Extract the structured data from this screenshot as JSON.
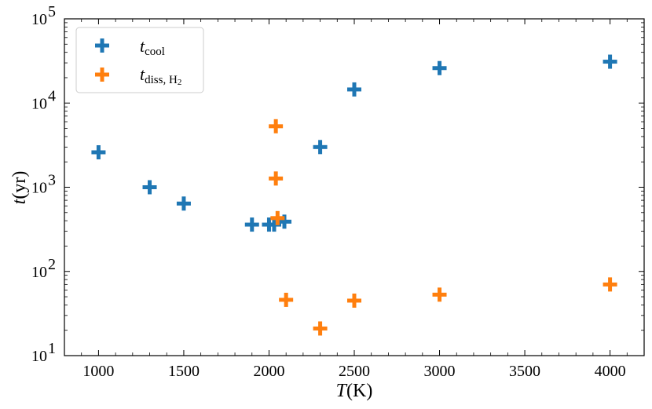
{
  "chart_data": {
    "type": "scatter",
    "xlabel": {
      "var": "T",
      "unit": "(K)"
    },
    "ylabel": {
      "var": "t",
      "unit": "(yr)"
    },
    "xlim": [
      800,
      4200
    ],
    "ylim": [
      10,
      100000
    ],
    "y_scale": "log",
    "x_ticks": [
      1000,
      1500,
      2000,
      2500,
      3000,
      3500,
      4000
    ],
    "y_ticks": [
      {
        "exp": "1",
        "value": 10
      },
      {
        "exp": "2",
        "value": 100
      },
      {
        "exp": "3",
        "value": 1000
      },
      {
        "exp": "4",
        "value": 10000
      },
      {
        "exp": "5",
        "value": 100000
      }
    ],
    "grid": false,
    "legend_position": "top-left",
    "series": [
      {
        "name": "t_cool",
        "legend": {
          "main": "t",
          "sub": "cool",
          "sub2": ""
        },
        "color": "#1f77b4",
        "marker": "plus",
        "points": [
          [
            1000,
            2600
          ],
          [
            1300,
            1000
          ],
          [
            1500,
            640
          ],
          [
            1900,
            360
          ],
          [
            2000,
            360
          ],
          [
            2030,
            360
          ],
          [
            2090,
            390
          ],
          [
            2300,
            3000
          ],
          [
            2500,
            14500
          ],
          [
            3000,
            26000
          ],
          [
            4000,
            31000
          ]
        ]
      },
      {
        "name": "t_diss, H2",
        "legend": {
          "main": "t",
          "sub": "diss, H",
          "sub2": "2"
        },
        "color": "#ff7f0e",
        "marker": "plus",
        "points": [
          [
            2040,
            5300
          ],
          [
            2040,
            1270
          ],
          [
            2050,
            430
          ],
          [
            2100,
            46
          ],
          [
            2300,
            21
          ],
          [
            2500,
            45
          ],
          [
            3000,
            53
          ],
          [
            4000,
            70
          ]
        ]
      }
    ]
  }
}
